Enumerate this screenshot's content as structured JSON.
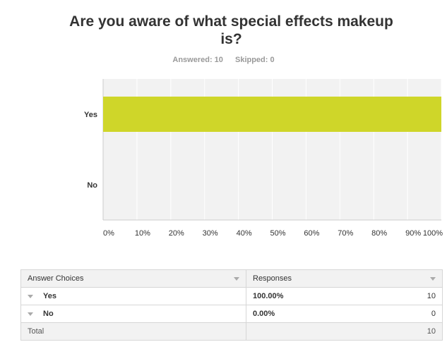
{
  "question": {
    "title": "Are you aware of what special effects makeup is?",
    "answered": "Answered: 10",
    "skipped": "Skipped: 0"
  },
  "colors": {
    "bar": "#cfd629",
    "plot_bg": "#f2f2f2",
    "grid": "#ffffff"
  },
  "chart_data": {
    "type": "bar",
    "orientation": "horizontal",
    "categories": [
      "Yes",
      "No"
    ],
    "values": [
      100,
      0
    ],
    "xlim": [
      0,
      100
    ],
    "xticks": [
      "0%",
      "10%",
      "20%",
      "30%",
      "40%",
      "50%",
      "60%",
      "70%",
      "80%",
      "90%",
      "100%"
    ],
    "title": "Are you aware of what special effects makeup is?",
    "xlabel": "",
    "ylabel": "",
    "grid": true
  },
  "table": {
    "headers": [
      "Answer Choices",
      "Responses"
    ],
    "rows": [
      {
        "choice": "Yes",
        "percent": "100.00%",
        "count": "10"
      },
      {
        "choice": "No",
        "percent": "0.00%",
        "count": "0"
      }
    ],
    "total_label": "Total",
    "total_count": "10"
  }
}
